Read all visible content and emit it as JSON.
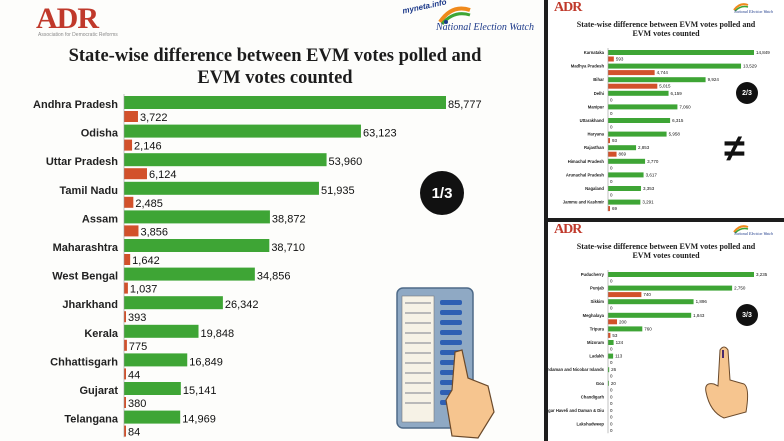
{
  "colors": {
    "polled": "#3ea535",
    "counted": "#d2512b",
    "badge": "#111111"
  },
  "panels": [
    {
      "logo": "ADR",
      "logo_sub": "Association for Democratic Reforms",
      "myneta": "myneta.info",
      "new_label": "National Election Watch",
      "title_line1": "State-wise difference between EVM votes polled and",
      "title_line2": "EVM votes counted",
      "badge": "1/3"
    },
    {
      "logo": "ADR",
      "new_label": "National Election Watch",
      "title_line1": "State-wise difference between EVM votes polled and",
      "title_line2": "EVM votes counted",
      "badge": "2/3",
      "not_equal": "≠"
    },
    {
      "logo": "ADR",
      "new_label": "National Election Watch",
      "title_line1": "State-wise difference between EVM votes polled and",
      "title_line2": "EVM votes counted",
      "badge": "3/3"
    }
  ],
  "chart_data": [
    {
      "type": "bar",
      "categories": [
        "Andhra Pradesh",
        "Odisha",
        "Uttar Pradesh",
        "Tamil Nadu",
        "Assam",
        "Maharashtra",
        "West Bengal",
        "Jharkhand",
        "Kerala",
        "Chhattisgarh",
        "Gujarat",
        "Telangana"
      ],
      "series": [
        {
          "values": [
            85777,
            63123,
            53960,
            51935,
            38872,
            38710,
            34856,
            26342,
            19848,
            16849,
            15141,
            14969
          ]
        },
        {
          "values": [
            3722,
            2146,
            6124,
            2485,
            3856,
            1642,
            1037,
            393,
            775,
            44,
            380,
            84
          ]
        }
      ]
    },
    {
      "type": "bar",
      "categories": [
        "Karnataka",
        "Madhya Pradesh",
        "Bihar",
        "Delhi",
        "Manipur",
        "Uttarakhand",
        "Haryana",
        "Rajasthan",
        "Himachal Pradesh",
        "Arunachal Pradesh",
        "Nagaland",
        "Jammu and Kashmir"
      ],
      "series": [
        {
          "values": [
            14849,
            13529,
            9924,
            6159,
            7060,
            6315,
            5958,
            2853,
            3770,
            3617,
            3353,
            3291
          ]
        },
        {
          "values": [
            593,
            4744,
            5015,
            0,
            0,
            0,
            93,
            869,
            0,
            0,
            0,
            69
          ]
        }
      ]
    },
    {
      "type": "bar",
      "categories": [
        "Puducherry",
        "Punjab",
        "Sikkim",
        "Meghalaya",
        "Tripura",
        "Mizoram",
        "Ladakh",
        "Andaman and Nicobar Islands",
        "Goa",
        "Chandigarh",
        "Dadra Nagar Haveli and Daman & Diu",
        "Lakshadweep"
      ],
      "series": [
        {
          "values": [
            3235,
            2750,
            1896,
            1843,
            760,
            124,
            113,
            26,
            20,
            0,
            0,
            0
          ]
        },
        {
          "values": [
            0,
            740,
            0,
            200,
            53,
            0,
            0,
            0,
            0,
            0,
            0,
            0
          ]
        }
      ]
    }
  ]
}
